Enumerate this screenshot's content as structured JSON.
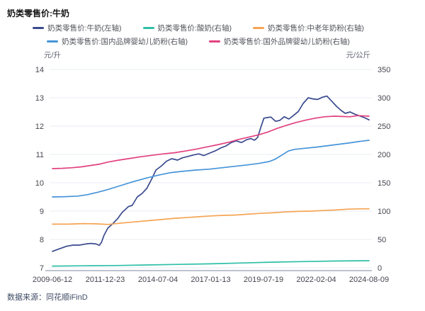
{
  "footer": {
    "source_label": "数据来源：同花顺iFinD"
  },
  "chart_data": {
    "type": "line",
    "title": "奶类零售价:牛奶",
    "legend_position": "top",
    "grid": true,
    "x_ticks": [
      "2009-06-12",
      "2011-12-23",
      "2014-07-04",
      "2017-01-13",
      "2019-07-19",
      "2022-02-04",
      "2024-08-09"
    ],
    "left_axis": {
      "unit": "元/升",
      "min": 7,
      "max": 14,
      "ticks": [
        7,
        8,
        9,
        10,
        11,
        12,
        13,
        14
      ]
    },
    "right_axis": {
      "unit": "元/公斤",
      "min": 0,
      "max": 350,
      "ticks": [
        0,
        50,
        100,
        150,
        200,
        250,
        300,
        350
      ]
    },
    "colors": {
      "grid": "#eaecf3",
      "axis_line": "#a9afc0",
      "tick_text": "#45464f",
      "navy": "#3a4a8e",
      "teal": "#2fbfa6",
      "orange": "#f5a454",
      "blue": "#4694d8",
      "pink": "#e2417f"
    },
    "series": [
      {
        "id": "milk",
        "name": "奶类零售价:牛奶(左轴)",
        "axis": "left",
        "color": "#3a4a8e",
        "points": [
          [
            0.0,
            7.58
          ],
          [
            0.02,
            7.66
          ],
          [
            0.045,
            7.76
          ],
          [
            0.065,
            7.8
          ],
          [
            0.085,
            7.8
          ],
          [
            0.105,
            7.84
          ],
          [
            0.122,
            7.86
          ],
          [
            0.138,
            7.84
          ],
          [
            0.148,
            7.79
          ],
          [
            0.155,
            7.9
          ],
          [
            0.163,
            8.15
          ],
          [
            0.175,
            8.4
          ],
          [
            0.19,
            8.55
          ],
          [
            0.205,
            8.72
          ],
          [
            0.22,
            8.95
          ],
          [
            0.24,
            9.16
          ],
          [
            0.252,
            9.2
          ],
          [
            0.268,
            9.5
          ],
          [
            0.283,
            9.62
          ],
          [
            0.298,
            9.8
          ],
          [
            0.313,
            10.12
          ],
          [
            0.327,
            10.45
          ],
          [
            0.345,
            10.6
          ],
          [
            0.36,
            10.76
          ],
          [
            0.377,
            10.85
          ],
          [
            0.395,
            10.8
          ],
          [
            0.41,
            10.88
          ],
          [
            0.425,
            10.92
          ],
          [
            0.445,
            10.98
          ],
          [
            0.462,
            11.02
          ],
          [
            0.478,
            10.96
          ],
          [
            0.497,
            11.05
          ],
          [
            0.513,
            11.12
          ],
          [
            0.53,
            11.22
          ],
          [
            0.548,
            11.3
          ],
          [
            0.565,
            11.42
          ],
          [
            0.58,
            11.48
          ],
          [
            0.597,
            11.42
          ],
          [
            0.613,
            11.52
          ],
          [
            0.627,
            11.56
          ],
          [
            0.638,
            11.5
          ],
          [
            0.648,
            11.6
          ],
          [
            0.658,
            11.95
          ],
          [
            0.668,
            12.28
          ],
          [
            0.678,
            12.3
          ],
          [
            0.69,
            12.32
          ],
          [
            0.705,
            12.17
          ],
          [
            0.718,
            12.2
          ],
          [
            0.732,
            12.33
          ],
          [
            0.747,
            12.25
          ],
          [
            0.762,
            12.38
          ],
          [
            0.777,
            12.52
          ],
          [
            0.792,
            12.8
          ],
          [
            0.808,
            13.0
          ],
          [
            0.822,
            12.96
          ],
          [
            0.838,
            12.94
          ],
          [
            0.853,
            13.02
          ],
          [
            0.867,
            13.06
          ],
          [
            0.882,
            12.88
          ],
          [
            0.897,
            12.7
          ],
          [
            0.912,
            12.55
          ],
          [
            0.925,
            12.45
          ],
          [
            0.94,
            12.5
          ],
          [
            0.955,
            12.42
          ],
          [
            0.97,
            12.36
          ],
          [
            0.985,
            12.3
          ],
          [
            1.0,
            12.22
          ]
        ]
      },
      {
        "id": "yogurt",
        "name": "奶类零售价:酸奶(右轴)",
        "axis": "right",
        "color": "#2fbfa6",
        "points": [
          [
            0.0,
            3
          ],
          [
            0.1,
            3.5
          ],
          [
            0.2,
            4
          ],
          [
            0.3,
            5
          ],
          [
            0.4,
            6
          ],
          [
            0.5,
            7
          ],
          [
            0.6,
            8.5
          ],
          [
            0.7,
            10
          ],
          [
            0.8,
            11
          ],
          [
            0.9,
            12
          ],
          [
            1.0,
            12.5
          ]
        ]
      },
      {
        "id": "middle-aged-milk-powder",
        "name": "奶类零售价:中老年奶粉(右轴)",
        "axis": "right",
        "color": "#f5a454",
        "points": [
          [
            0.0,
            77
          ],
          [
            0.05,
            77
          ],
          [
            0.1,
            78
          ],
          [
            0.14,
            77.5
          ],
          [
            0.175,
            76.5
          ],
          [
            0.22,
            79
          ],
          [
            0.26,
            81
          ],
          [
            0.3,
            83
          ],
          [
            0.34,
            85
          ],
          [
            0.38,
            87
          ],
          [
            0.42,
            88.5
          ],
          [
            0.46,
            90
          ],
          [
            0.5,
            91.5
          ],
          [
            0.54,
            92.5
          ],
          [
            0.575,
            93
          ],
          [
            0.615,
            94.5
          ],
          [
            0.655,
            96
          ],
          [
            0.695,
            97
          ],
          [
            0.735,
            98.5
          ],
          [
            0.775,
            99.5
          ],
          [
            0.815,
            100
          ],
          [
            0.855,
            101
          ],
          [
            0.895,
            102
          ],
          [
            0.935,
            103.5
          ],
          [
            0.97,
            104
          ],
          [
            1.0,
            104
          ]
        ]
      },
      {
        "id": "domestic-infant-formula",
        "name": "奶类零售价:国内品牌婴幼儿奶粉(右轴)",
        "axis": "right",
        "color": "#4694d8",
        "points": [
          [
            0.0,
            125
          ],
          [
            0.04,
            125.5
          ],
          [
            0.08,
            126.5
          ],
          [
            0.11,
            129
          ],
          [
            0.145,
            133.5
          ],
          [
            0.175,
            138
          ],
          [
            0.215,
            145
          ],
          [
            0.255,
            152
          ],
          [
            0.295,
            158
          ],
          [
            0.335,
            163.5
          ],
          [
            0.375,
            168
          ],
          [
            0.415,
            170.5
          ],
          [
            0.455,
            172.5
          ],
          [
            0.495,
            174
          ],
          [
            0.535,
            176.5
          ],
          [
            0.575,
            179
          ],
          [
            0.615,
            181.5
          ],
          [
            0.65,
            184
          ],
          [
            0.685,
            187.5
          ],
          [
            0.705,
            192
          ],
          [
            0.725,
            199
          ],
          [
            0.745,
            206
          ],
          [
            0.765,
            209
          ],
          [
            0.8,
            211
          ],
          [
            0.835,
            213
          ],
          [
            0.87,
            215.5
          ],
          [
            0.905,
            218
          ],
          [
            0.94,
            220.5
          ],
          [
            0.97,
            223
          ],
          [
            1.0,
            225
          ]
        ]
      },
      {
        "id": "foreign-infant-formula",
        "name": "奶类零售价:国外品牌婴幼儿奶粉(右轴)",
        "axis": "right",
        "color": "#e2417f",
        "points": [
          [
            0.0,
            175
          ],
          [
            0.03,
            175.5
          ],
          [
            0.06,
            176.5
          ],
          [
            0.09,
            178
          ],
          [
            0.12,
            180.5
          ],
          [
            0.15,
            183
          ],
          [
            0.175,
            186.5
          ],
          [
            0.21,
            190
          ],
          [
            0.245,
            193
          ],
          [
            0.28,
            196
          ],
          [
            0.315,
            198.5
          ],
          [
            0.35,
            201
          ],
          [
            0.385,
            203
          ],
          [
            0.42,
            206
          ],
          [
            0.455,
            209.5
          ],
          [
            0.49,
            213.5
          ],
          [
            0.525,
            217.5
          ],
          [
            0.56,
            222
          ],
          [
            0.585,
            226
          ],
          [
            0.62,
            230.5
          ],
          [
            0.65,
            234.5
          ],
          [
            0.68,
            239.5
          ],
          [
            0.71,
            246
          ],
          [
            0.74,
            251.5
          ],
          [
            0.77,
            256.5
          ],
          [
            0.8,
            260.5
          ],
          [
            0.83,
            264
          ],
          [
            0.86,
            266.5
          ],
          [
            0.89,
            267.5
          ],
          [
            0.915,
            267
          ],
          [
            0.94,
            266.5
          ],
          [
            0.965,
            268.5
          ],
          [
            1.0,
            267.5
          ]
        ]
      }
    ]
  }
}
